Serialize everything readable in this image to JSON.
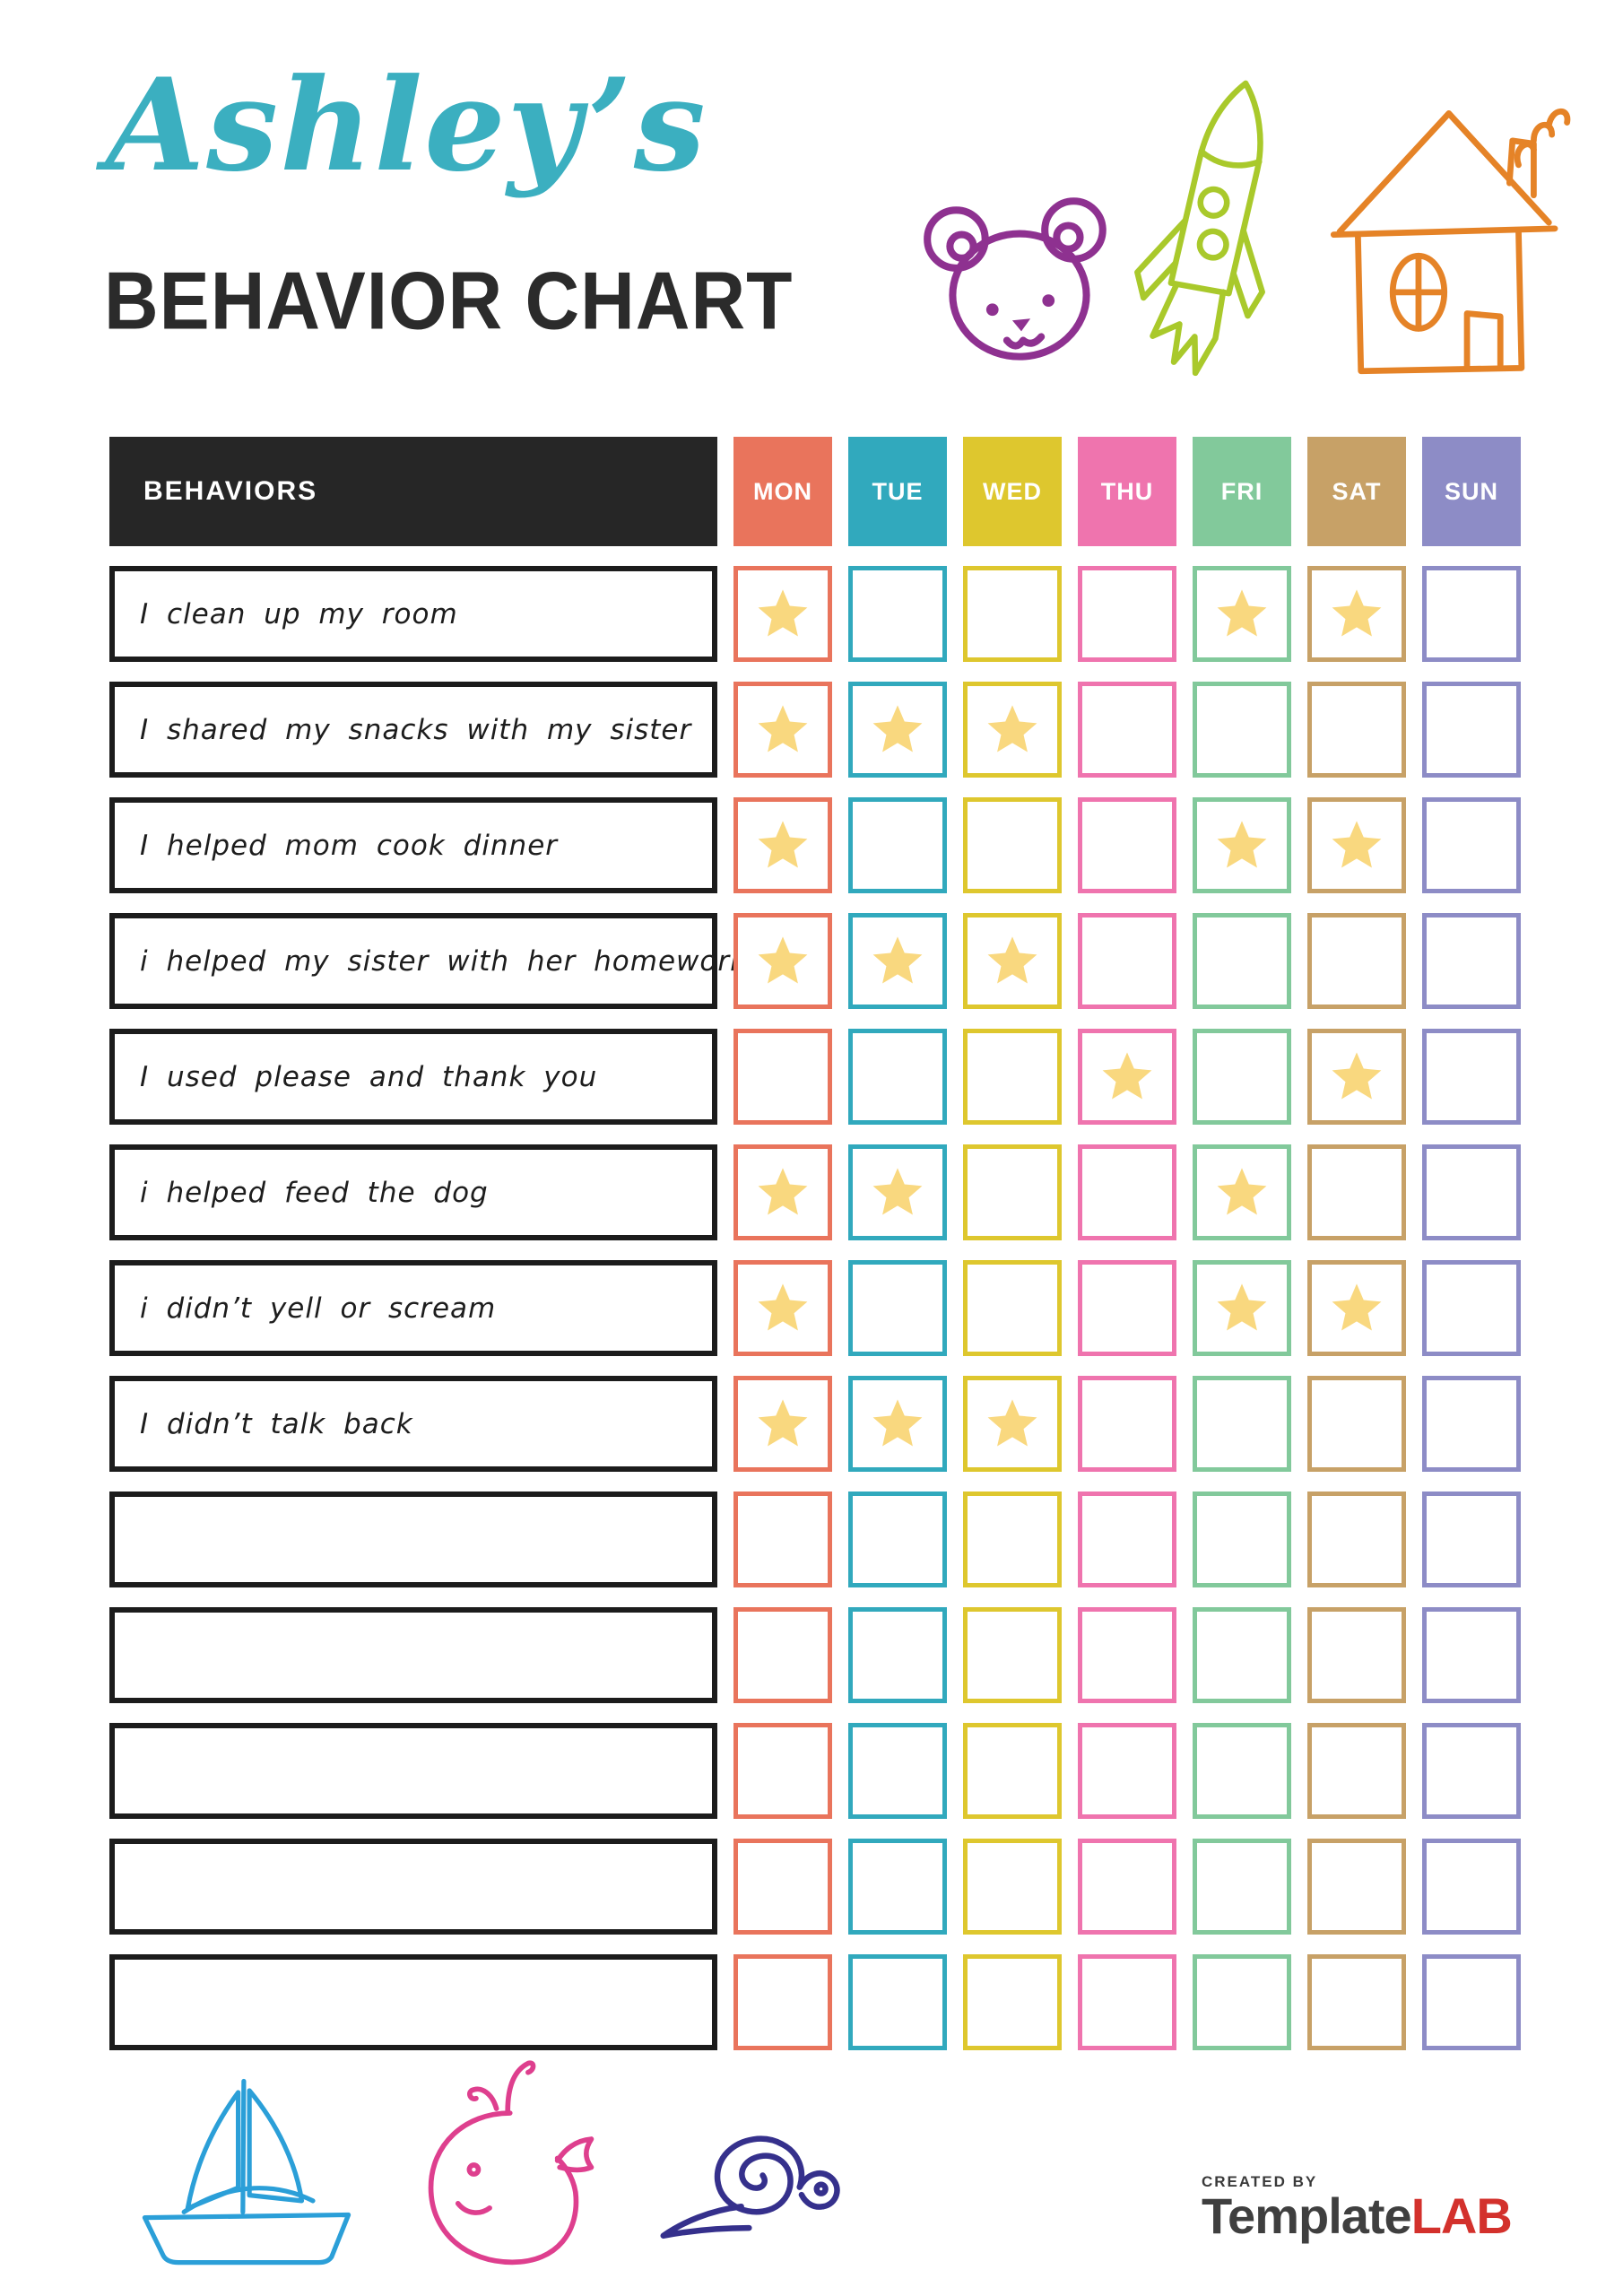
{
  "header": {
    "script_title": "Ashley’s",
    "script_title_color": "#3BAFC0",
    "main_title": "BEHAVIOR CHART",
    "main_title_color": "#2B2B2B"
  },
  "table": {
    "behaviors_label": "BEHAVIORS",
    "header_bg": "#262626",
    "row_border_color": "#1C1C1C",
    "star_color": "#F9D87F",
    "days": [
      {
        "label": "MON",
        "color": "#E9745C"
      },
      {
        "label": "TUE",
        "color": "#31A9BD"
      },
      {
        "label": "WED",
        "color": "#DEC72E"
      },
      {
        "label": "THU",
        "color": "#EF74AE"
      },
      {
        "label": "FRI",
        "color": "#82C99B"
      },
      {
        "label": "SAT",
        "color": "#C7A167"
      },
      {
        "label": "SUN",
        "color": "#8D8CC6"
      }
    ],
    "rows": [
      {
        "label": "I clean up my room",
        "stars": [
          1,
          0,
          0,
          0,
          1,
          1,
          0
        ]
      },
      {
        "label": "I shared my snacks with my sister",
        "stars": [
          1,
          1,
          1,
          0,
          0,
          0,
          0
        ]
      },
      {
        "label": "I helped mom cook dinner",
        "stars": [
          1,
          0,
          0,
          0,
          1,
          1,
          0
        ]
      },
      {
        "label": "i helped my sister with her homework",
        "stars": [
          1,
          1,
          1,
          0,
          0,
          0,
          0
        ]
      },
      {
        "label": "I used please and thank you",
        "stars": [
          0,
          0,
          0,
          1,
          0,
          1,
          0
        ]
      },
      {
        "label": "i helped feed the dog",
        "stars": [
          1,
          1,
          0,
          0,
          1,
          0,
          0
        ]
      },
      {
        "label": "i didn’t yell or scream",
        "stars": [
          1,
          0,
          0,
          0,
          1,
          1,
          0
        ]
      },
      {
        "label": "I didn’t talk back",
        "stars": [
          1,
          1,
          1,
          0,
          0,
          0,
          0
        ]
      },
      {
        "label": "",
        "stars": [
          0,
          0,
          0,
          0,
          0,
          0,
          0
        ]
      },
      {
        "label": "",
        "stars": [
          0,
          0,
          0,
          0,
          0,
          0,
          0
        ]
      },
      {
        "label": "",
        "stars": [
          0,
          0,
          0,
          0,
          0,
          0,
          0
        ]
      },
      {
        "label": "",
        "stars": [
          0,
          0,
          0,
          0,
          0,
          0,
          0
        ]
      },
      {
        "label": "",
        "stars": [
          0,
          0,
          0,
          0,
          0,
          0,
          0
        ]
      }
    ]
  },
  "doodles": {
    "bear_color": "#8E3190",
    "rocket_color": "#A9C92B",
    "house_color": "#E58327",
    "sailboat_color": "#2B9FD8",
    "whale_color": "#DE3F8E",
    "snail_color": "#35308C"
  },
  "footer": {
    "created_by": "CREATED BY",
    "brand": "Template",
    "brand_suffix": "LAB",
    "brand_color": "#3F3F3F",
    "brand_suffix_color": "#D3312C"
  }
}
